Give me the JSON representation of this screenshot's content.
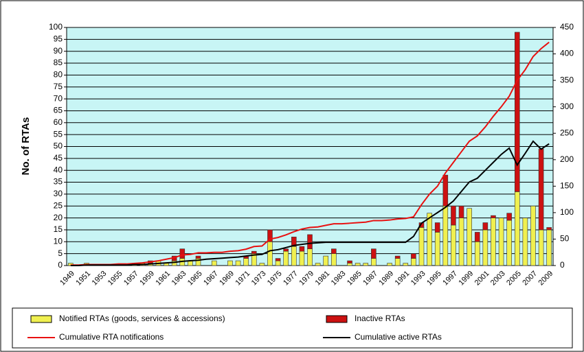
{
  "chart_data": {
    "type": "bar",
    "stacked": true,
    "ylabel": "No. of RTAs",
    "categories": [
      "1949",
      null,
      "1951",
      null,
      "1953",
      null,
      "1955",
      null,
      "1957",
      null,
      "1959",
      null,
      "1961",
      null,
      "1963",
      null,
      "1965",
      null,
      "1967",
      null,
      "1969",
      null,
      "1971",
      null,
      "1973",
      null,
      "1975",
      null,
      "1977",
      null,
      "1979",
      null,
      "1981",
      null,
      "1983",
      null,
      "1985",
      null,
      "1987",
      null,
      "1989",
      null,
      "1991",
      null,
      "1993",
      null,
      "1995",
      null,
      "1997",
      null,
      "1999",
      null,
      "2001",
      null,
      "2003",
      null,
      "2005",
      null,
      "2007",
      null,
      "2009"
    ],
    "ylim": [
      0,
      100
    ],
    "yticks": [
      0,
      5,
      10,
      15,
      20,
      25,
      30,
      35,
      40,
      45,
      50,
      55,
      60,
      65,
      70,
      75,
      80,
      85,
      90,
      95,
      100
    ],
    "y2lim": [
      0,
      450
    ],
    "y2ticks": [
      0,
      50,
      100,
      150,
      200,
      250,
      300,
      350,
      400,
      450
    ],
    "grid": true,
    "background": "#c8f5f5",
    "series": [
      {
        "name": "Notified RTAs (goods, services & accessions)",
        "type": "bar",
        "color": "#f0f050",
        "values": [
          1,
          0,
          1,
          0,
          0,
          0,
          0,
          0,
          1,
          1,
          1,
          2,
          1,
          2,
          3,
          2,
          3,
          0,
          2,
          0,
          2,
          2,
          3,
          5,
          1,
          10,
          2,
          6,
          8,
          6,
          7,
          1,
          4,
          5,
          0,
          1,
          1,
          1,
          3,
          0,
          1,
          3,
          1,
          3,
          16,
          22,
          14,
          25,
          17,
          20,
          24,
          10,
          15,
          20,
          20,
          19,
          31,
          20,
          25,
          15,
          15
        ]
      },
      {
        "name": "Inactive RTAs",
        "type": "bar",
        "color": "#cc1111",
        "values": [
          0,
          0,
          0,
          0,
          0,
          0,
          0,
          0,
          0,
          0,
          1,
          0,
          0,
          2,
          4,
          0,
          1,
          0,
          0,
          0,
          0,
          0,
          1,
          1,
          0,
          5,
          1,
          1,
          4,
          2,
          6,
          0,
          0,
          2,
          0,
          1,
          0,
          0,
          4,
          0,
          0,
          1,
          0,
          2,
          2,
          0,
          4,
          13,
          8,
          5,
          0,
          4,
          3,
          1,
          0,
          3,
          67,
          0,
          0,
          34,
          1
        ]
      },
      {
        "name": "Cumulative RTA notifications",
        "type": "line",
        "axis": "y2",
        "color": "#e81010",
        "values": [
          1,
          1,
          2,
          2,
          2,
          2,
          3,
          3,
          4,
          5,
          7,
          9,
          12,
          15,
          20,
          21,
          24,
          24,
          25,
          25,
          27,
          28,
          31,
          36,
          37,
          50,
          53,
          58,
          64,
          69,
          72,
          73,
          76,
          79,
          79,
          80,
          81,
          82,
          85,
          85,
          86,
          88,
          89,
          92,
          115,
          135,
          150,
          175,
          195,
          215,
          235,
          245,
          262,
          282,
          300,
          320,
          350,
          370,
          395,
          410,
          422
        ]
      },
      {
        "name": "Cumulative active RTAs",
        "type": "line",
        "axis": "y2",
        "color": "#000000",
        "values": [
          0,
          0,
          1,
          1,
          1,
          1,
          1,
          1,
          2,
          2,
          3,
          4,
          5,
          6,
          8,
          9,
          10,
          12,
          13,
          14,
          15,
          16,
          18,
          20,
          21,
          28,
          30,
          34,
          38,
          40,
          42,
          43,
          44,
          44,
          44,
          44,
          44,
          44,
          44,
          44,
          44,
          44,
          44,
          55,
          80,
          90,
          100,
          110,
          122,
          140,
          158,
          165,
          180,
          195,
          210,
          222,
          190,
          212,
          235,
          220,
          230
        ]
      }
    ]
  }
}
